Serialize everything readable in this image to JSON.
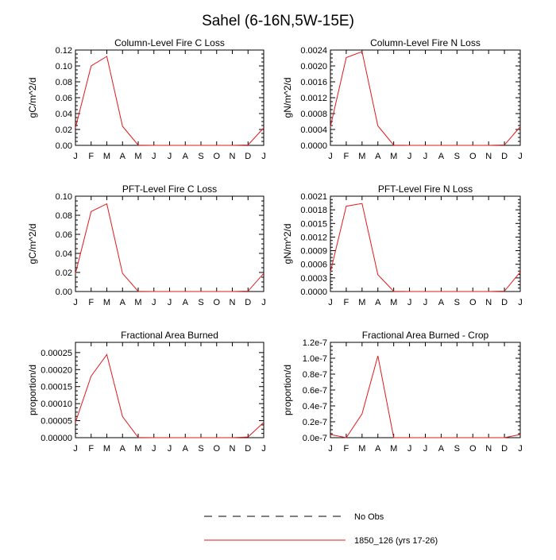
{
  "figure": {
    "title": "Sahel (6-16N,5W-15E)"
  },
  "legend": {
    "placement": "bottom-right",
    "entries": [
      {
        "label": "No Obs",
        "style": "dashed",
        "color": "#000000"
      },
      {
        "label": "1850_126 (yrs 17-26)",
        "style": "solid",
        "color": "#e0191c"
      }
    ]
  },
  "chart_data": [
    {
      "type": "line",
      "title": "Column-Level Fire C Loss",
      "ylabel": "gC/m^2/d",
      "xlabel": "",
      "categories": [
        "J",
        "F",
        "M",
        "A",
        "M",
        "J",
        "J",
        "A",
        "S",
        "O",
        "N",
        "D",
        "J"
      ],
      "ylim": [
        0,
        0.12
      ],
      "yticks": [
        "0.00",
        "0.02",
        "0.04",
        "0.06",
        "0.08",
        "0.10",
        "0.12"
      ],
      "series": [
        {
          "color": "#e0191c",
          "values": [
            0.022,
            0.1,
            0.112,
            0.024,
            0.0003,
            0.0,
            0.0,
            0.0,
            0.0,
            0.0,
            0.0,
            0.0005,
            0.022
          ]
        }
      ]
    },
    {
      "type": "line",
      "title": "Column-Level Fire N Loss",
      "ylabel": "gN/m^2/d",
      "xlabel": "",
      "categories": [
        "J",
        "F",
        "M",
        "A",
        "M",
        "J",
        "J",
        "A",
        "S",
        "O",
        "N",
        "D",
        "J"
      ],
      "ylim": [
        0,
        0.0024
      ],
      "yticks": [
        "0.0000",
        "0.0004",
        "0.0008",
        "0.0012",
        "0.0016",
        "0.0020",
        "0.0024"
      ],
      "series": [
        {
          "color": "#e0191c",
          "values": [
            0.00047,
            0.00221,
            0.00236,
            0.00049,
            5e-06,
            0.0,
            0.0,
            0.0,
            0.0,
            0.0,
            0.0,
            1e-05,
            0.00047
          ]
        }
      ]
    },
    {
      "type": "line",
      "title": "PFT-Level Fire C Loss",
      "ylabel": "gC/m^2/d",
      "xlabel": "",
      "categories": [
        "J",
        "F",
        "M",
        "A",
        "M",
        "J",
        "J",
        "A",
        "S",
        "O",
        "N",
        "D",
        "J"
      ],
      "ylim": [
        0,
        0.1
      ],
      "yticks": [
        "0.00",
        "0.02",
        "0.04",
        "0.06",
        "0.08",
        "0.10"
      ],
      "series": [
        {
          "color": "#e0191c",
          "values": [
            0.019,
            0.084,
            0.092,
            0.019,
            0.0002,
            0.0,
            0.0,
            0.0,
            0.0,
            0.0,
            0.0,
            0.0004,
            0.019
          ]
        }
      ]
    },
    {
      "type": "line",
      "title": "PFT-Level Fire N Loss",
      "ylabel": "gN/m^2/d",
      "xlabel": "",
      "categories": [
        "J",
        "F",
        "M",
        "A",
        "M",
        "J",
        "J",
        "A",
        "S",
        "O",
        "N",
        "D",
        "J"
      ],
      "ylim": [
        0,
        0.0021
      ],
      "yticks": [
        "0.0000",
        "0.0003",
        "0.0006",
        "0.0009",
        "0.0012",
        "0.0015",
        "0.0018",
        "0.0021"
      ],
      "series": [
        {
          "color": "#e0191c",
          "values": [
            0.00043,
            0.00188,
            0.00194,
            0.00037,
            4e-06,
            0.0,
            0.0,
            0.0,
            0.0,
            0.0,
            0.0,
            8e-06,
            0.00043
          ]
        }
      ]
    },
    {
      "type": "line",
      "title": "Fractional Area Burned",
      "ylabel": "proportion/d",
      "xlabel": "",
      "categories": [
        "J",
        "F",
        "M",
        "A",
        "M",
        "J",
        "J",
        "A",
        "S",
        "O",
        "N",
        "D",
        "J"
      ],
      "ylim": [
        0,
        0.00028
      ],
      "yticks": [
        "0.00000",
        "0.00005",
        "0.00010",
        "0.00015",
        "0.00020",
        "0.00025"
      ],
      "series": [
        {
          "color": "#e0191c",
          "values": [
            4.5e-05,
            0.000181,
            0.000244,
            6.2e-05,
            5e-07,
            0.0,
            0.0,
            0.0,
            0.0,
            0.0,
            0.0,
            2e-06,
            4.5e-05
          ]
        }
      ]
    },
    {
      "type": "line",
      "title": "Fractional Area Burned - Crop",
      "ylabel": "proportion/d",
      "xlabel": "",
      "categories": [
        "J",
        "F",
        "M",
        "A",
        "M",
        "J",
        "J",
        "A",
        "S",
        "O",
        "N",
        "D",
        "J"
      ],
      "ylim": [
        0,
        1.2e-07
      ],
      "yticks": [
        "0.0e-7",
        "0.2e-7",
        "0.4e-7",
        "0.6e-7",
        "0.8e-7",
        "1.0e-7",
        "1.2e-7"
      ],
      "series": [
        {
          "color": "#e0191c",
          "values": [
            4e-09,
            0.0,
            3e-08,
            1.03e-07,
            0.0,
            0.0,
            0.0,
            0.0,
            0.0,
            0.0,
            0.0,
            0.0,
            4e-09
          ]
        }
      ]
    }
  ]
}
